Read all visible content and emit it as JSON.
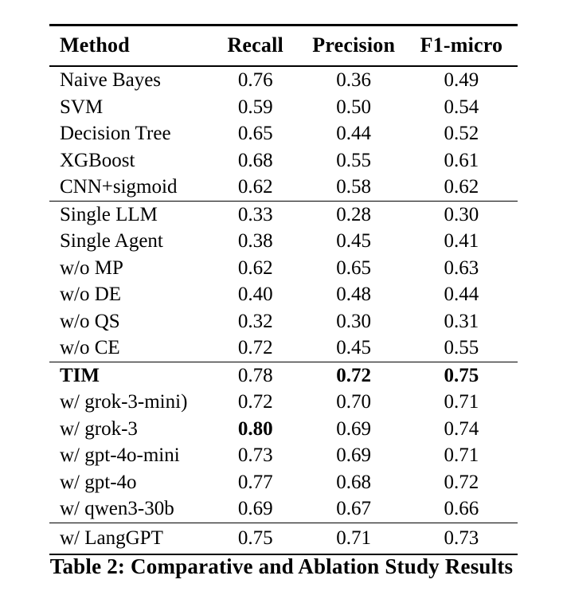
{
  "table": {
    "columns": [
      "Method",
      "Recall",
      "Precision",
      "F1-micro"
    ],
    "sections": [
      {
        "rows": [
          {
            "method": "Naive Bayes",
            "recall": "0.76",
            "precision": "0.36",
            "f1": "0.49",
            "bold": []
          },
          {
            "method": "SVM",
            "recall": "0.59",
            "precision": "0.50",
            "f1": "0.54",
            "bold": []
          },
          {
            "method": "Decision Tree",
            "recall": "0.65",
            "precision": "0.44",
            "f1": "0.52",
            "bold": []
          },
          {
            "method": "XGBoost",
            "recall": "0.68",
            "precision": "0.55",
            "f1": "0.61",
            "bold": []
          },
          {
            "method": "CNN+sigmoid",
            "recall": "0.62",
            "precision": "0.58",
            "f1": "0.62",
            "bold": []
          }
        ]
      },
      {
        "rows": [
          {
            "method": "Single LLM",
            "recall": "0.33",
            "precision": "0.28",
            "f1": "0.30",
            "bold": []
          },
          {
            "method": "Single Agent",
            "recall": "0.38",
            "precision": "0.45",
            "f1": "0.41",
            "bold": []
          },
          {
            "method": "w/o MP",
            "recall": "0.62",
            "precision": "0.65",
            "f1": "0.63",
            "bold": []
          },
          {
            "method": "w/o DE",
            "recall": "0.40",
            "precision": "0.48",
            "f1": "0.44",
            "bold": []
          },
          {
            "method": "w/o QS",
            "recall": "0.32",
            "precision": "0.30",
            "f1": "0.31",
            "bold": []
          },
          {
            "method": "w/o CE",
            "recall": "0.72",
            "precision": "0.45",
            "f1": "0.55",
            "bold": []
          }
        ]
      },
      {
        "rows": [
          {
            "method": "TIM",
            "recall": "0.78",
            "precision": "0.72",
            "f1": "0.75",
            "bold": [
              "method",
              "precision",
              "f1"
            ]
          },
          {
            "method": "w/ grok-3-mini)",
            "recall": "0.72",
            "precision": "0.70",
            "f1": "0.71",
            "bold": []
          },
          {
            "method": "w/ grok-3",
            "recall": "0.80",
            "precision": "0.69",
            "f1": "0.74",
            "bold": [
              "recall"
            ]
          },
          {
            "method": "w/ gpt-4o-mini",
            "recall": "0.73",
            "precision": "0.69",
            "f1": "0.71",
            "bold": []
          },
          {
            "method": "w/ gpt-4o",
            "recall": "0.77",
            "precision": "0.68",
            "f1": "0.72",
            "bold": []
          },
          {
            "method": "w/ qwen3-30b",
            "recall": "0.69",
            "precision": "0.67",
            "f1": "0.66",
            "bold": []
          }
        ]
      },
      {
        "rows": [
          {
            "method": "w/ LangGPT",
            "recall": "0.75",
            "precision": "0.71",
            "f1": "0.73",
            "bold": []
          }
        ]
      }
    ],
    "caption": "Table 2: Comparative and Ablation Study Results"
  },
  "chart_data": {
    "type": "table",
    "title": "Table 2: Comparative and Ablation Study Results",
    "columns": [
      "Method",
      "Recall",
      "Precision",
      "F1-micro"
    ],
    "rows": [
      [
        "Naive Bayes",
        0.76,
        0.36,
        0.49
      ],
      [
        "SVM",
        0.59,
        0.5,
        0.54
      ],
      [
        "Decision Tree",
        0.65,
        0.44,
        0.52
      ],
      [
        "XGBoost",
        0.68,
        0.55,
        0.61
      ],
      [
        "CNN+sigmoid",
        0.62,
        0.58,
        0.62
      ],
      [
        "Single LLM",
        0.33,
        0.28,
        0.3
      ],
      [
        "Single Agent",
        0.38,
        0.45,
        0.41
      ],
      [
        "w/o MP",
        0.62,
        0.65,
        0.63
      ],
      [
        "w/o DE",
        0.4,
        0.48,
        0.44
      ],
      [
        "w/o QS",
        0.32,
        0.3,
        0.31
      ],
      [
        "w/o CE",
        0.72,
        0.45,
        0.55
      ],
      [
        "TIM",
        0.78,
        0.72,
        0.75
      ],
      [
        "w/ grok-3-mini)",
        0.72,
        0.7,
        0.71
      ],
      [
        "w/ grok-3",
        0.8,
        0.69,
        0.74
      ],
      [
        "w/ gpt-4o-mini",
        0.73,
        0.69,
        0.71
      ],
      [
        "w/ gpt-4o",
        0.77,
        0.68,
        0.72
      ],
      [
        "w/ qwen3-30b",
        0.69,
        0.67,
        0.66
      ],
      [
        "w/ LangGPT",
        0.75,
        0.71,
        0.73
      ]
    ]
  }
}
